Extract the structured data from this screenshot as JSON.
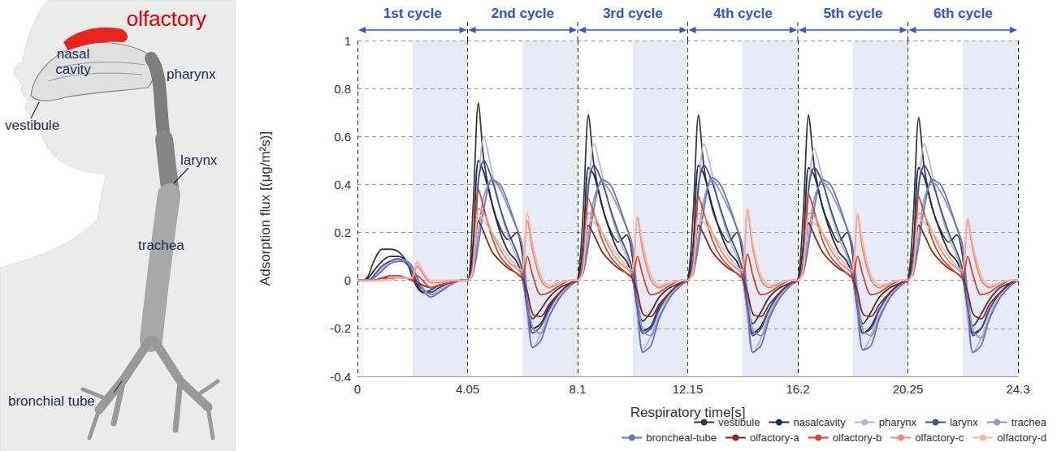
{
  "anatomy": {
    "highlight": "olfactory",
    "labels": [
      "nasal cavity",
      "pharynx",
      "vestibule",
      "larynx",
      "trachea",
      "bronchial tube"
    ]
  },
  "chart_data": {
    "type": "line",
    "xlabel": "Respiratory time[s]",
    "ylabel": "Adsorption flux [(μg/m²s)]",
    "x": [
      0,
      0.2,
      0.4,
      0.6,
      0.9,
      1.2,
      1.5,
      1.8,
      2.0,
      2.2,
      2.4,
      2.7,
      3.0,
      3.4,
      3.8,
      4.05,
      4.25,
      4.45,
      4.65,
      4.95,
      5.25,
      5.55,
      5.85,
      6.05,
      6.25,
      6.45,
      6.75,
      7.05,
      7.45,
      7.85,
      8.1,
      8.3,
      8.5,
      8.7,
      9.0,
      9.3,
      9.6,
      9.9,
      10.1,
      10.3,
      10.5,
      10.8,
      11.1,
      11.5,
      11.9,
      12.15,
      12.35,
      12.55,
      12.75,
      13.05,
      13.35,
      13.65,
      13.95,
      14.15,
      14.35,
      14.55,
      14.85,
      15.15,
      15.55,
      15.95,
      16.2,
      16.4,
      16.6,
      16.8,
      17.1,
      17.4,
      17.7,
      18.0,
      18.2,
      18.4,
      18.6,
      18.9,
      19.2,
      19.6,
      20.0,
      20.25,
      20.45,
      20.65,
      20.85,
      21.15,
      21.45,
      21.75,
      22.05,
      22.25,
      22.45,
      22.65,
      22.95,
      23.25,
      23.65,
      24.05,
      24.3
    ],
    "series": [
      {
        "name": "vestibule",
        "color": "#3a3a3a",
        "values": [
          0,
          0,
          0.02,
          0.08,
          0.13,
          0.13,
          0.12,
          0.08,
          0.02,
          -0.03,
          -0.05,
          -0.04,
          -0.02,
          -0.01,
          0,
          0,
          0.3,
          0.74,
          0.5,
          0.32,
          0.22,
          0.17,
          0.2,
          0.12,
          -0.1,
          -0.16,
          -0.12,
          -0.07,
          -0.03,
          -0.01,
          0,
          0.28,
          0.69,
          0.48,
          0.31,
          0.21,
          0.16,
          0.19,
          0.11,
          -0.1,
          -0.17,
          -0.13,
          -0.07,
          -0.03,
          -0.01,
          0,
          0.28,
          0.69,
          0.47,
          0.3,
          0.21,
          0.16,
          0.2,
          0.12,
          -0.11,
          -0.18,
          -0.13,
          -0.07,
          -0.03,
          -0.01,
          0,
          0.28,
          0.69,
          0.48,
          0.31,
          0.22,
          0.16,
          0.2,
          0.12,
          -0.11,
          -0.18,
          -0.13,
          -0.07,
          -0.03,
          -0.01,
          0,
          0.27,
          0.68,
          0.47,
          0.3,
          0.21,
          0.16,
          0.19,
          0.11,
          -0.11,
          -0.19,
          -0.14,
          -0.08,
          -0.03,
          -0.01,
          0
        ]
      },
      {
        "name": "nasalcavity",
        "color": "#1f2a55",
        "values": [
          0,
          0,
          0.01,
          0.04,
          0.08,
          0.1,
          0.1,
          0.08,
          0.04,
          -0.02,
          -0.05,
          -0.05,
          -0.03,
          -0.01,
          0,
          0,
          0.15,
          0.5,
          0.45,
          0.32,
          0.2,
          0.12,
          0.08,
          0.02,
          -0.12,
          -0.2,
          -0.18,
          -0.11,
          -0.05,
          -0.01,
          0,
          0.15,
          0.47,
          0.44,
          0.31,
          0.2,
          0.12,
          0.08,
          0.02,
          -0.13,
          -0.21,
          -0.19,
          -0.11,
          -0.05,
          -0.01,
          0,
          0.15,
          0.48,
          0.44,
          0.31,
          0.2,
          0.12,
          0.08,
          0.02,
          -0.13,
          -0.22,
          -0.19,
          -0.12,
          -0.05,
          -0.01,
          0,
          0.15,
          0.47,
          0.44,
          0.31,
          0.2,
          0.12,
          0.08,
          0.02,
          -0.13,
          -0.22,
          -0.19,
          -0.12,
          -0.05,
          -0.01,
          0,
          0.14,
          0.47,
          0.43,
          0.3,
          0.2,
          0.12,
          0.08,
          0.02,
          -0.13,
          -0.22,
          -0.2,
          -0.12,
          -0.05,
          -0.01,
          0
        ]
      },
      {
        "name": "pharynx",
        "color": "#b3b7dd",
        "values": [
          0,
          0,
          0,
          0.02,
          0.05,
          0.08,
          0.09,
          0.08,
          0.05,
          0,
          -0.04,
          -0.06,
          -0.04,
          -0.02,
          0,
          0,
          0.05,
          0.4,
          0.6,
          0.45,
          0.3,
          0.18,
          0.1,
          0.04,
          -0.15,
          -0.28,
          -0.22,
          -0.13,
          -0.06,
          -0.01,
          0,
          0.05,
          0.38,
          0.57,
          0.44,
          0.29,
          0.18,
          0.1,
          0.04,
          -0.16,
          -0.29,
          -0.23,
          -0.13,
          -0.06,
          -0.01,
          0,
          0.05,
          0.38,
          0.57,
          0.44,
          0.29,
          0.18,
          0.1,
          0.04,
          -0.16,
          -0.3,
          -0.24,
          -0.14,
          -0.06,
          -0.01,
          0,
          0.05,
          0.37,
          0.55,
          0.43,
          0.29,
          0.18,
          0.1,
          0.04,
          -0.16,
          -0.29,
          -0.23,
          -0.13,
          -0.06,
          -0.01,
          0,
          0.05,
          0.38,
          0.57,
          0.44,
          0.29,
          0.18,
          0.1,
          0.04,
          -0.16,
          -0.3,
          -0.24,
          -0.14,
          -0.06,
          -0.01,
          0
        ]
      },
      {
        "name": "larynx",
        "color": "#4a5080",
        "values": [
          0,
          0,
          0,
          0.02,
          0.06,
          0.08,
          0.09,
          0.07,
          0.04,
          -0.01,
          -0.04,
          -0.05,
          -0.03,
          -0.01,
          0,
          0,
          0.08,
          0.42,
          0.5,
          0.42,
          0.3,
          0.2,
          0.12,
          0.05,
          -0.12,
          -0.22,
          -0.19,
          -0.12,
          -0.05,
          -0.01,
          0,
          0.08,
          0.4,
          0.48,
          0.41,
          0.3,
          0.2,
          0.12,
          0.05,
          -0.12,
          -0.22,
          -0.2,
          -0.12,
          -0.05,
          -0.01,
          0,
          0.08,
          0.4,
          0.48,
          0.41,
          0.3,
          0.2,
          0.12,
          0.05,
          -0.12,
          -0.23,
          -0.2,
          -0.12,
          -0.05,
          -0.01,
          0,
          0.08,
          0.39,
          0.47,
          0.41,
          0.3,
          0.2,
          0.12,
          0.05,
          -0.12,
          -0.22,
          -0.2,
          -0.12,
          -0.05,
          -0.01,
          0,
          0.08,
          0.4,
          0.48,
          0.41,
          0.3,
          0.2,
          0.12,
          0.05,
          -0.12,
          -0.23,
          -0.2,
          -0.12,
          -0.05,
          -0.01,
          0
        ]
      },
      {
        "name": "trachea",
        "color": "#8e95cc",
        "values": [
          0,
          0,
          0,
          0.01,
          0.04,
          0.07,
          0.08,
          0.08,
          0.05,
          0.01,
          -0.03,
          -0.06,
          -0.05,
          -0.02,
          0,
          0,
          0.03,
          0.2,
          0.35,
          0.42,
          0.38,
          0.3,
          0.22,
          0.15,
          -0.05,
          -0.2,
          -0.22,
          -0.15,
          -0.07,
          -0.02,
          0,
          0.03,
          0.19,
          0.34,
          0.41,
          0.37,
          0.3,
          0.22,
          0.15,
          -0.05,
          -0.21,
          -0.23,
          -0.15,
          -0.07,
          -0.02,
          0,
          0.03,
          0.19,
          0.34,
          0.42,
          0.37,
          0.3,
          0.22,
          0.15,
          -0.05,
          -0.21,
          -0.23,
          -0.15,
          -0.07,
          -0.02,
          0,
          0.03,
          0.19,
          0.34,
          0.41,
          0.37,
          0.3,
          0.22,
          0.15,
          -0.05,
          -0.21,
          -0.23,
          -0.15,
          -0.07,
          -0.02,
          0,
          0.03,
          0.19,
          0.34,
          0.41,
          0.37,
          0.3,
          0.22,
          0.15,
          -0.05,
          -0.21,
          -0.24,
          -0.16,
          -0.07,
          -0.02,
          0
        ]
      },
      {
        "name": "broncheal-tube",
        "color": "#6b74c4",
        "values": [
          0,
          0,
          0,
          0.01,
          0.04,
          0.07,
          0.08,
          0.08,
          0.06,
          0.01,
          -0.04,
          -0.07,
          -0.05,
          -0.02,
          0,
          0,
          0.03,
          0.15,
          0.3,
          0.42,
          0.4,
          0.32,
          0.22,
          0.15,
          -0.1,
          -0.28,
          -0.25,
          -0.15,
          -0.07,
          -0.02,
          0,
          0.03,
          0.15,
          0.3,
          0.42,
          0.4,
          0.32,
          0.22,
          0.15,
          -0.1,
          -0.3,
          -0.27,
          -0.16,
          -0.07,
          -0.02,
          0,
          0.03,
          0.15,
          0.3,
          0.43,
          0.4,
          0.32,
          0.22,
          0.15,
          -0.1,
          -0.3,
          -0.27,
          -0.16,
          -0.07,
          -0.02,
          0,
          0.03,
          0.15,
          0.3,
          0.42,
          0.4,
          0.32,
          0.22,
          0.15,
          -0.1,
          -0.29,
          -0.27,
          -0.16,
          -0.07,
          -0.02,
          0,
          0.03,
          0.15,
          0.3,
          0.42,
          0.4,
          0.32,
          0.22,
          0.15,
          -0.1,
          -0.3,
          -0.27,
          -0.16,
          -0.07,
          -0.02,
          0
        ]
      },
      {
        "name": "olfactory-a",
        "color": "#8b2a1a",
        "values": [
          0,
          0,
          0,
          0,
          0.01,
          0.01,
          0.01,
          0.01,
          0,
          -0.01,
          -0.02,
          -0.03,
          -0.02,
          -0.01,
          0,
          0,
          0.05,
          0.25,
          0.2,
          0.12,
          0.08,
          0.05,
          0.03,
          0.01,
          -0.05,
          -0.14,
          -0.15,
          -0.1,
          -0.05,
          -0.01,
          0,
          0.05,
          0.23,
          0.19,
          0.12,
          0.08,
          0.05,
          0.03,
          0.01,
          -0.05,
          -0.14,
          -0.15,
          -0.1,
          -0.05,
          -0.01,
          0,
          0.05,
          0.23,
          0.19,
          0.12,
          0.08,
          0.05,
          0.03,
          0.01,
          -0.05,
          -0.14,
          -0.15,
          -0.1,
          -0.05,
          -0.01,
          0,
          0.05,
          0.24,
          0.19,
          0.12,
          0.08,
          0.05,
          0.03,
          0.01,
          -0.05,
          -0.14,
          -0.15,
          -0.1,
          -0.05,
          -0.01,
          0,
          0.05,
          0.23,
          0.19,
          0.12,
          0.08,
          0.05,
          0.03,
          0.01,
          -0.05,
          -0.14,
          -0.16,
          -0.1,
          -0.05,
          -0.01,
          0
        ]
      },
      {
        "name": "olfactory-b",
        "color": "#d9442c",
        "values": [
          0,
          0,
          0,
          0,
          0.01,
          0.02,
          0.02,
          0.01,
          0,
          0.02,
          0,
          -0.03,
          -0.02,
          -0.01,
          0,
          0,
          0.08,
          0.38,
          0.3,
          0.18,
          0.1,
          0.06,
          0.03,
          0.01,
          0.1,
          0.02,
          -0.06,
          -0.05,
          -0.02,
          0,
          0,
          0.07,
          0.34,
          0.28,
          0.17,
          0.1,
          0.06,
          0.03,
          0.01,
          0.1,
          0.02,
          -0.06,
          -0.05,
          -0.02,
          0,
          0,
          0.07,
          0.35,
          0.28,
          0.17,
          0.1,
          0.06,
          0.03,
          0.01,
          0.11,
          0.02,
          -0.06,
          -0.05,
          -0.02,
          0,
          0,
          0.07,
          0.36,
          0.29,
          0.17,
          0.1,
          0.06,
          0.03,
          0.01,
          0.1,
          0.02,
          -0.06,
          -0.05,
          -0.02,
          0,
          0,
          0.07,
          0.35,
          0.28,
          0.17,
          0.1,
          0.06,
          0.03,
          0.01,
          0.1,
          0.02,
          -0.06,
          -0.05,
          -0.02,
          0,
          0
        ]
      },
      {
        "name": "olfactory-c",
        "color": "#f08a70",
        "values": [
          0,
          0,
          0,
          0,
          0,
          0.01,
          0.01,
          0.01,
          0.01,
          0.06,
          0.03,
          -0.01,
          -0.01,
          0,
          0,
          0,
          0.05,
          0.3,
          0.28,
          0.2,
          0.13,
          0.08,
          0.05,
          0.03,
          0.25,
          0.12,
          0,
          -0.03,
          -0.01,
          0,
          0,
          0.05,
          0.28,
          0.27,
          0.2,
          0.13,
          0.08,
          0.05,
          0.03,
          0.26,
          0.12,
          0,
          -0.03,
          -0.01,
          0,
          0,
          0.05,
          0.28,
          0.27,
          0.2,
          0.13,
          0.08,
          0.05,
          0.03,
          0.29,
          0.13,
          0,
          -0.03,
          -0.01,
          0,
          0,
          0.05,
          0.28,
          0.27,
          0.2,
          0.13,
          0.08,
          0.05,
          0.03,
          0.27,
          0.12,
          0,
          -0.03,
          -0.01,
          0,
          0,
          0.05,
          0.28,
          0.27,
          0.2,
          0.13,
          0.08,
          0.05,
          0.03,
          0.25,
          0.12,
          0,
          -0.03,
          -0.01,
          0,
          0
        ]
      },
      {
        "name": "olfactory-d",
        "color": "#f5b5a6",
        "values": [
          0,
          0,
          0,
          0,
          0,
          0,
          0.01,
          0.01,
          0.01,
          0.08,
          0.04,
          0,
          0,
          0,
          0,
          0,
          0.04,
          0.28,
          0.25,
          0.2,
          0.15,
          0.1,
          0.06,
          0.04,
          0.28,
          0.15,
          0.02,
          -0.02,
          -0.01,
          0,
          0,
          0.04,
          0.26,
          0.24,
          0.2,
          0.15,
          0.1,
          0.06,
          0.04,
          0.27,
          0.15,
          0.02,
          -0.02,
          -0.01,
          0,
          0,
          0.04,
          0.26,
          0.24,
          0.2,
          0.15,
          0.1,
          0.06,
          0.04,
          0.3,
          0.15,
          0.02,
          -0.02,
          -0.01,
          0,
          0,
          0.04,
          0.26,
          0.24,
          0.2,
          0.15,
          0.1,
          0.06,
          0.04,
          0.28,
          0.15,
          0.02,
          -0.02,
          -0.01,
          0,
          0,
          0.04,
          0.26,
          0.24,
          0.2,
          0.15,
          0.1,
          0.06,
          0.04,
          0.26,
          0.14,
          0.02,
          -0.02,
          -0.01,
          0,
          0
        ]
      }
    ],
    "xlim": [
      0,
      24.3
    ],
    "xticks": [
      0,
      4.05,
      8.1,
      12.15,
      16.2,
      20.25,
      24.3
    ],
    "ylim": [
      -0.4,
      1
    ],
    "yticks": [
      -0.4,
      -0.2,
      0,
      0.2,
      0.4,
      0.6,
      0.8,
      1
    ],
    "grid": true,
    "legend": "bottom right",
    "cycles": [
      {
        "label": "1st cycle",
        "start": 0,
        "end": 4.05
      },
      {
        "label": "2nd cycle",
        "start": 4.05,
        "end": 8.1
      },
      {
        "label": "3rd cycle",
        "start": 8.1,
        "end": 12.15
      },
      {
        "label": "4th cycle",
        "start": 12.15,
        "end": 16.2
      },
      {
        "label": "5th cycle",
        "start": 16.2,
        "end": 20.25
      },
      {
        "label": "6th cycle",
        "start": 20.25,
        "end": 24.3
      }
    ],
    "shaded": [
      [
        2.025,
        4.05
      ],
      [
        6.075,
        8.1
      ],
      [
        10.125,
        12.15
      ],
      [
        14.175,
        16.2
      ],
      [
        18.225,
        20.25
      ],
      [
        22.275,
        24.3
      ]
    ]
  }
}
